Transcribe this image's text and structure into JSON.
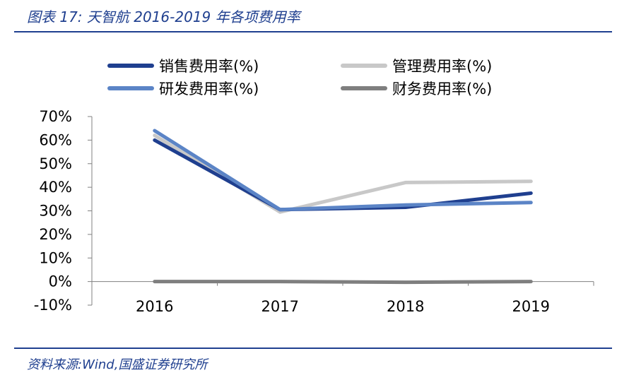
{
  "figure": {
    "title": "图表 17:  天智航 2016-2019 年各项费用率",
    "source": "资料来源:Wind,国盛证券研究所"
  },
  "chart_data": {
    "type": "line",
    "title": "",
    "xlabel": "",
    "ylabel": "",
    "categories": [
      "2016",
      "2017",
      "2018",
      "2019"
    ],
    "y_ticks": [
      "70%",
      "60%",
      "50%",
      "40%",
      "30%",
      "20%",
      "10%",
      "0%",
      "-10%"
    ],
    "ylim": [
      -10,
      70
    ],
    "grid": false,
    "legend_position": "top",
    "series": [
      {
        "name": "销售费用率(%)",
        "color": "#1f3f8f",
        "values": [
          60,
          30.5,
          31.5,
          37.5
        ]
      },
      {
        "name": "管理费用率(%)",
        "color": "#c8c8c8",
        "values": [
          62,
          29.5,
          42,
          42.5
        ]
      },
      {
        "name": "研发费用率(%)",
        "color": "#5b84c6",
        "values": [
          64,
          30.5,
          32.5,
          33.5
        ]
      },
      {
        "name": "财务费用率(%)",
        "color": "#7f7f7f",
        "values": [
          0,
          0,
          -0.3,
          0
        ]
      }
    ]
  }
}
